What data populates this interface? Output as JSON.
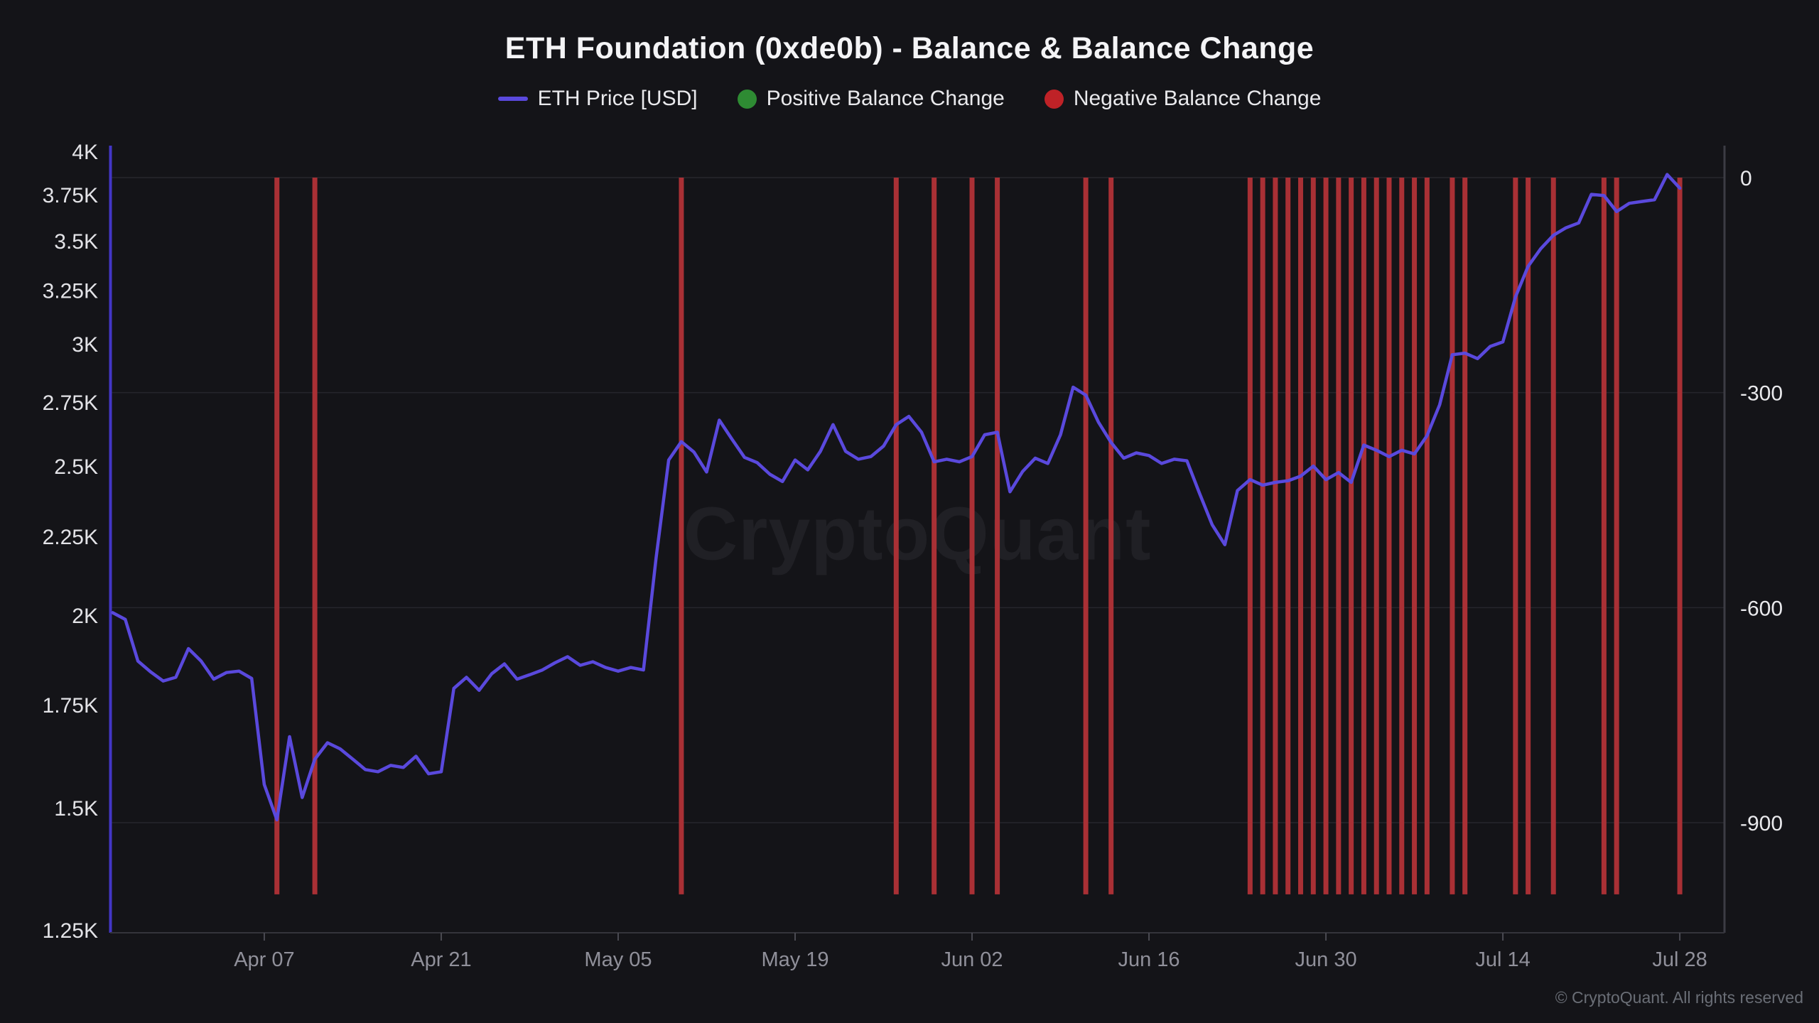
{
  "header": {
    "title": "ETH Foundation (0xde0b) - Balance & Balance Change"
  },
  "legend": {
    "items": [
      {
        "label": "ETH Price [USD]",
        "swatch": "line",
        "color": "#5a49dd"
      },
      {
        "label": "Positive Balance Change",
        "swatch": "dot",
        "color": "#2e8b33"
      },
      {
        "label": "Negative Balance Change",
        "swatch": "dot",
        "color": "#bf2227"
      }
    ]
  },
  "watermark": {
    "text": "CryptoQuant"
  },
  "footer": {
    "copyright": "© CryptoQuant. All rights reserved"
  },
  "colors": {
    "background": "#141418",
    "price_line": "#5a49dd",
    "left_axis_line": "#4336c6",
    "right_axis_line": "#3c3c44",
    "bottom_axis_line": "#34343b",
    "gridline": "#26262c",
    "negative_bar": "#a93035",
    "x_label": "#90909a",
    "y_label": "#e3e3e7"
  },
  "chart_data": {
    "type": "mixed",
    "title": "ETH Foundation (0xde0b) - Balance & Balance Change",
    "x_axis": {
      "start_date": "Mar 26",
      "end_date": "Jul 28",
      "tick_labels": [
        "Apr 07",
        "Apr 21",
        "May 05",
        "May 19",
        "Jun 02",
        "Jun 16",
        "Jun 30",
        "Jul 14",
        "Jul 28"
      ]
    },
    "left_axis": {
      "scale": "log",
      "tick_labels": [
        "4K",
        "3.75K",
        "3.5K",
        "3.25K",
        "3K",
        "2.75K",
        "2.5K",
        "2.25K",
        "2K",
        "1.75K",
        "1.5K",
        "1.25K"
      ],
      "tick_values": [
        4000,
        3750,
        3500,
        3250,
        3000,
        2750,
        2500,
        2250,
        2000,
        1750,
        1500,
        1250
      ],
      "range": [
        1250,
        4000
      ]
    },
    "right_axis": {
      "scale": "linear",
      "tick_labels": [
        "0",
        "-300",
        "-600",
        "-900"
      ],
      "tick_values": [
        0,
        -300,
        -600,
        -900
      ],
      "range": [
        -1010,
        0
      ]
    },
    "series": [
      {
        "name": "ETH Price [USD]",
        "type": "line",
        "axis": "left",
        "color": "#5a49dd",
        "points": [
          [
            "Mar 26",
            2010
          ],
          [
            "Mar 27",
            1990
          ],
          [
            "Mar 28",
            1870
          ],
          [
            "Mar 29",
            1840
          ],
          [
            "Mar 30",
            1815
          ],
          [
            "Mar 31",
            1825
          ],
          [
            "Apr 01",
            1905
          ],
          [
            "Apr 02",
            1870
          ],
          [
            "Apr 03",
            1820
          ],
          [
            "Apr 04",
            1838
          ],
          [
            "Apr 05",
            1842
          ],
          [
            "Apr 06",
            1822
          ],
          [
            "Apr 07",
            1555
          ],
          [
            "Apr 08",
            1475
          ],
          [
            "Apr 09",
            1670
          ],
          [
            "Apr 10",
            1525
          ],
          [
            "Apr 11",
            1615
          ],
          [
            "Apr 12",
            1655
          ],
          [
            "Apr 13",
            1640
          ],
          [
            "Apr 14",
            1615
          ],
          [
            "Apr 15",
            1590
          ],
          [
            "Apr 16",
            1585
          ],
          [
            "Apr 17",
            1600
          ],
          [
            "Apr 18",
            1595
          ],
          [
            "Apr 19",
            1622
          ],
          [
            "Apr 20",
            1580
          ],
          [
            "Apr 21",
            1585
          ],
          [
            "Apr 22",
            1795
          ],
          [
            "Apr 23",
            1825
          ],
          [
            "Apr 24",
            1790
          ],
          [
            "Apr 25",
            1835
          ],
          [
            "Apr 26",
            1862
          ],
          [
            "Apr 27",
            1820
          ],
          [
            "Apr 28",
            1832
          ],
          [
            "Apr 29",
            1845
          ],
          [
            "Apr 30",
            1865
          ],
          [
            "May 01",
            1882
          ],
          [
            "May 02",
            1858
          ],
          [
            "May 03",
            1868
          ],
          [
            "May 04",
            1852
          ],
          [
            "May 05",
            1842
          ],
          [
            "May 06",
            1852
          ],
          [
            "May 07",
            1845
          ],
          [
            "May 08",
            2180
          ],
          [
            "May 09",
            2525
          ],
          [
            "May 10",
            2595
          ],
          [
            "May 11",
            2555
          ],
          [
            "May 12",
            2480
          ],
          [
            "May 13",
            2680
          ],
          [
            "May 14",
            2605
          ],
          [
            "May 15",
            2535
          ],
          [
            "May 16",
            2515
          ],
          [
            "May 17",
            2472
          ],
          [
            "May 18",
            2445
          ],
          [
            "May 19",
            2525
          ],
          [
            "May 20",
            2488
          ],
          [
            "May 21",
            2558
          ],
          [
            "May 22",
            2662
          ],
          [
            "May 23",
            2558
          ],
          [
            "May 24",
            2528
          ],
          [
            "May 25",
            2538
          ],
          [
            "May 26",
            2578
          ],
          [
            "May 27",
            2662
          ],
          [
            "May 28",
            2695
          ],
          [
            "May 29",
            2632
          ],
          [
            "May 30",
            2518
          ],
          [
            "May 31",
            2528
          ],
          [
            "Jun 01",
            2518
          ],
          [
            "Jun 02",
            2538
          ],
          [
            "Jun 03",
            2622
          ],
          [
            "Jun 04",
            2632
          ],
          [
            "Jun 05",
            2408
          ],
          [
            "Jun 06",
            2482
          ],
          [
            "Jun 07",
            2532
          ],
          [
            "Jun 08",
            2512
          ],
          [
            "Jun 09",
            2622
          ],
          [
            "Jun 10",
            2815
          ],
          [
            "Jun 11",
            2782
          ],
          [
            "Jun 12",
            2672
          ],
          [
            "Jun 13",
            2592
          ],
          [
            "Jun 14",
            2532
          ],
          [
            "Jun 15",
            2552
          ],
          [
            "Jun 16",
            2542
          ],
          [
            "Jun 17",
            2512
          ],
          [
            "Jun 18",
            2528
          ],
          [
            "Jun 19",
            2522
          ],
          [
            "Jun 20",
            2402
          ],
          [
            "Jun 21",
            2292
          ],
          [
            "Jun 22",
            2225
          ],
          [
            "Jun 23",
            2412
          ],
          [
            "Jun 24",
            2452
          ],
          [
            "Jun 25",
            2432
          ],
          [
            "Jun 26",
            2442
          ],
          [
            "Jun 27",
            2448
          ],
          [
            "Jun 28",
            2465
          ],
          [
            "Jun 29",
            2502
          ],
          [
            "Jun 30",
            2452
          ],
          [
            "Jul 01",
            2478
          ],
          [
            "Jul 02",
            2442
          ],
          [
            "Jul 03",
            2582
          ],
          [
            "Jul 04",
            2562
          ],
          [
            "Jul 05",
            2538
          ],
          [
            "Jul 06",
            2562
          ],
          [
            "Jul 07",
            2548
          ],
          [
            "Jul 08",
            2618
          ],
          [
            "Jul 09",
            2742
          ],
          [
            "Jul 10",
            2955
          ],
          [
            "Jul 11",
            2962
          ],
          [
            "Jul 12",
            2938
          ],
          [
            "Jul 13",
            2992
          ],
          [
            "Jul 14",
            3012
          ],
          [
            "Jul 15",
            3222
          ],
          [
            "Jul 16",
            3372
          ],
          [
            "Jul 17",
            3462
          ],
          [
            "Jul 18",
            3532
          ],
          [
            "Jul 19",
            3572
          ],
          [
            "Jul 20",
            3598
          ],
          [
            "Jul 21",
            3755
          ],
          [
            "Jul 22",
            3748
          ],
          [
            "Jul 23",
            3660
          ],
          [
            "Jul 24",
            3705
          ],
          [
            "Jul 25",
            3715
          ],
          [
            "Jul 26",
            3725
          ],
          [
            "Jul 27",
            3868
          ],
          [
            "Jul 28",
            3790
          ]
        ]
      },
      {
        "name": "Positive Balance Change",
        "type": "bar",
        "axis": "right",
        "color": "#2e8b33",
        "dates": [],
        "bar_value": 0
      },
      {
        "name": "Negative Balance Change",
        "type": "bar",
        "axis": "right",
        "color": "#a93035",
        "bar_value": -1000,
        "dates": [
          "Apr 08",
          "Apr 11",
          "May 10",
          "May 27",
          "May 30",
          "Jun 02",
          "Jun 04",
          "Jun 11",
          "Jun 13",
          "Jun 24",
          "Jun 25",
          "Jun 26",
          "Jun 27",
          "Jun 28",
          "Jun 29",
          "Jun 30",
          "Jul 01",
          "Jul 02",
          "Jul 03",
          "Jul 04",
          "Jul 05",
          "Jul 06",
          "Jul 07",
          "Jul 08",
          "Jul 10",
          "Jul 11",
          "Jul 15",
          "Jul 16",
          "Jul 18",
          "Jul 22",
          "Jul 23",
          "Jul 28"
        ]
      }
    ]
  }
}
